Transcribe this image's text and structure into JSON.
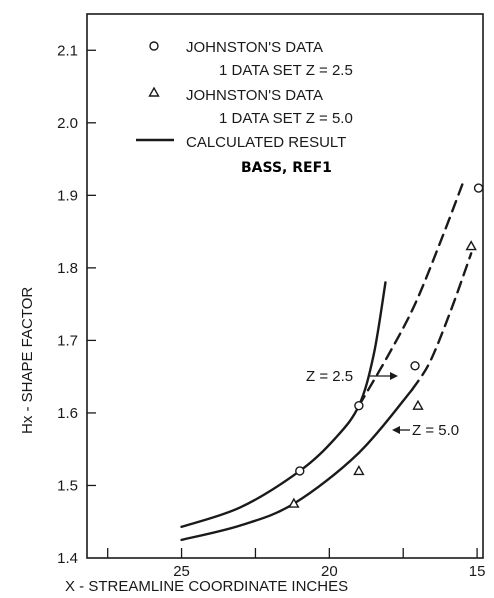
{
  "chart_data": {
    "type": "line",
    "xlabel": "X - STREAMLINE COORDINATE INCHES",
    "ylabel": "Hx - SHAPE FACTOR",
    "xlim": [
      28.2,
      14.8
    ],
    "ylim": [
      1.4,
      2.15
    ],
    "x_reversed": true,
    "xticks": [
      25,
      20,
      15
    ],
    "xtick_labels": [
      "25",
      "20",
      "15"
    ],
    "yticks": [
      1.4,
      1.5,
      1.6,
      1.7,
      1.8,
      1.9,
      2.0,
      2.1
    ],
    "ytick_labels": [
      "1.4",
      "1.5",
      "1.6",
      "1.7",
      "1.8",
      "1.9",
      "2.0",
      "2.1"
    ],
    "grid": false,
    "legend_position": "top-left",
    "legend": {
      "circle_line1": "JOHNSTON'S DATA",
      "circle_line2": "1 DATA SET Z = 2.5",
      "triangle_line1": "JOHNSTON'S DATA",
      "triangle_line2": "1 DATA SET Z = 5.0",
      "line_label": "CALCULATED RESULT",
      "reference": "BASS, REF1"
    },
    "annotations": {
      "z25": "Z = 2.5",
      "z50": "Z = 5.0"
    },
    "series": [
      {
        "name": "JOHNSTON'S DATA 1 DATA SET Z = 2.5",
        "kind": "markers",
        "marker": "circle",
        "x": [
          21.0,
          19.0,
          17.1,
          14.95
        ],
        "y": [
          1.52,
          1.61,
          1.665,
          1.91
        ]
      },
      {
        "name": "JOHNSTON'S DATA 1 DATA SET Z = 5.0",
        "kind": "markers",
        "marker": "triangle",
        "x": [
          21.2,
          19.0,
          17.0,
          15.2
        ],
        "y": [
          1.475,
          1.52,
          1.61,
          1.83
        ]
      },
      {
        "name": "CALCULATED RESULT Z = 2.5",
        "kind": "solid",
        "x": [
          25.0,
          23.0,
          21.0,
          19.8,
          19.0,
          18.5,
          18.1
        ],
        "y": [
          1.443,
          1.47,
          1.52,
          1.565,
          1.61,
          1.68,
          1.78
        ]
      },
      {
        "name": "Z = 2.5 extrapolated",
        "kind": "dashed",
        "x": [
          19.0,
          18.0,
          17.1,
          16.2,
          15.5
        ],
        "y": [
          1.61,
          1.68,
          1.75,
          1.84,
          1.915
        ]
      },
      {
        "name": "CALCULATED RESULT Z = 5.0",
        "kind": "solid",
        "x": [
          25.0,
          23.0,
          21.2,
          19.0,
          17.2
        ],
        "y": [
          1.425,
          1.445,
          1.475,
          1.545,
          1.632
        ]
      },
      {
        "name": "Z = 5.0 extrapolated",
        "kind": "dashed",
        "x": [
          17.2,
          16.6,
          15.9,
          15.2
        ],
        "y": [
          1.632,
          1.67,
          1.74,
          1.82
        ]
      }
    ]
  }
}
